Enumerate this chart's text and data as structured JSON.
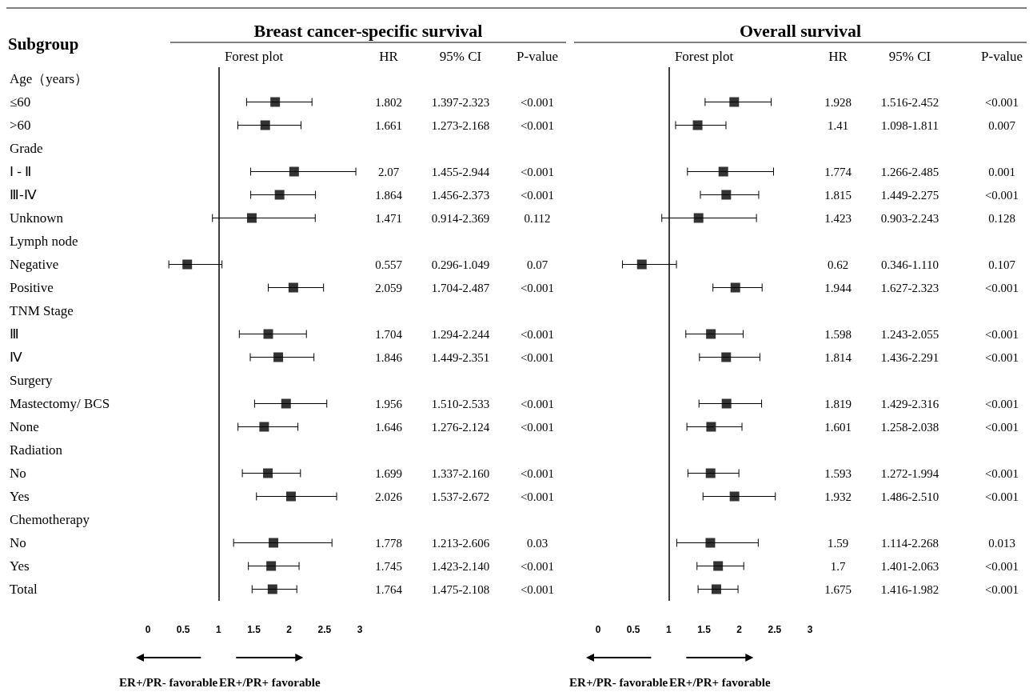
{
  "chart_data": [
    {
      "type": "scatter",
      "title": "Breast cancer-specific survival",
      "ylabel": "Subgroup",
      "orientation": "horizontal",
      "marker": "square",
      "color": "#000000",
      "data_labels": true,
      "categories": [
        "Age（years）",
        "≤60",
        ">60",
        "Grade",
        "Ⅰ - Ⅱ",
        "Ⅲ-Ⅳ",
        "Unknown",
        "Lymph node",
        "Negative",
        "Positive",
        "TNM Stage",
        "Ⅲ",
        "Ⅳ",
        "Surgery",
        "Mastectomy/ BCS",
        "None",
        "Radiation",
        "No",
        "Yes",
        "Chemotherapy",
        "No",
        "Yes",
        "Total"
      ],
      "values": [
        null,
        1.802,
        1.661,
        null,
        2.07,
        1.864,
        1.471,
        null,
        0.557,
        2.059,
        null,
        1.704,
        1.846,
        null,
        1.956,
        1.646,
        null,
        1.699,
        2.026,
        null,
        1.778,
        1.745,
        1.764
      ],
      "errors": [
        null,
        [
          1.397,
          2.323
        ],
        [
          1.273,
          2.168
        ],
        null,
        [
          1.455,
          2.944
        ],
        [
          1.456,
          2.373
        ],
        [
          0.914,
          2.369
        ],
        null,
        [
          0.296,
          1.049
        ],
        [
          1.704,
          2.487
        ],
        null,
        [
          1.294,
          2.244
        ],
        [
          1.449,
          2.351
        ],
        null,
        [
          1.51,
          2.533
        ],
        [
          1.276,
          2.124
        ],
        null,
        [
          1.337,
          2.16
        ],
        [
          1.537,
          2.672
        ],
        null,
        [
          1.213,
          2.606
        ],
        [
          1.423,
          2.14
        ],
        [
          1.475,
          2.108
        ]
      ],
      "xlim": [
        0,
        3
      ],
      "xticks": [
        0,
        0.5,
        1,
        1.5,
        2,
        2.5,
        3
      ],
      "grid": false,
      "ref_lines": [
        {
          "axis": "x",
          "value": 1
        }
      ],
      "annotations": [
        "Forest plot",
        "HR",
        "95% CI",
        "P-value",
        "ER+/PR- favorable",
        "ER+/PR+ favorable",
        "1.397-2.323",
        "1.273-2.168",
        "1.455-2.944",
        "1.456-2.373",
        "0.914-2.369",
        "0.296-1.049",
        "1.704-2.487",
        "1.294-2.244",
        "1.449-2.351",
        "1.510-2.533",
        "1.276-2.124",
        "1.337-2.160",
        "1.537-2.672",
        "1.213-2.606",
        "1.423-2.140",
        "1.475-2.108",
        "<0.001",
        "<0.001",
        "<0.001",
        "<0.001",
        "0.112",
        "0.07",
        "<0.001",
        "<0.001",
        "<0.001",
        "<0.001",
        "<0.001",
        "<0.001",
        "<0.001",
        "0.03",
        "<0.001",
        "<0.001"
      ]
    },
    {
      "type": "scatter",
      "title": "Overall survival",
      "orientation": "horizontal",
      "marker": "square",
      "color": "#000000",
      "data_labels": true,
      "tick_labels": "x",
      "categories": [
        null,
        null,
        null,
        null,
        null,
        null,
        null,
        null,
        null,
        null,
        null,
        null,
        null,
        null,
        null,
        null,
        null,
        null,
        null,
        null,
        null,
        null,
        null
      ],
      "values": [
        null,
        1.928,
        1.41,
        null,
        1.774,
        1.815,
        1.423,
        null,
        0.62,
        1.944,
        null,
        1.598,
        1.814,
        null,
        1.819,
        1.601,
        null,
        1.593,
        1.932,
        null,
        1.59,
        1.7,
        1.675
      ],
      "errors": [
        null,
        [
          1.516,
          2.452
        ],
        [
          1.098,
          1.811
        ],
        null,
        [
          1.266,
          2.485
        ],
        [
          1.449,
          2.275
        ],
        [
          0.903,
          2.243
        ],
        null,
        [
          0.346,
          1.11
        ],
        [
          1.627,
          2.323
        ],
        null,
        [
          1.243,
          2.055
        ],
        [
          1.436,
          2.291
        ],
        null,
        [
          1.429,
          2.316
        ],
        [
          1.258,
          2.038
        ],
        null,
        [
          1.272,
          1.994
        ],
        [
          1.486,
          2.51
        ],
        null,
        [
          1.114,
          2.268
        ],
        [
          1.401,
          2.063
        ],
        [
          1.416,
          1.982
        ]
      ],
      "xlim": [
        0,
        3
      ],
      "xticks": [
        0,
        0.5,
        1,
        1.5,
        2,
        2.5,
        3
      ],
      "grid": false,
      "ref_lines": [
        {
          "axis": "x",
          "value": 1
        }
      ],
      "annotations": [
        "Forest plot",
        "HR",
        "95% CI",
        "P-value",
        "ER+/PR- favorable",
        "ER+/PR+ favorable",
        "1.516-2.452",
        "1.098-1.811",
        "1.266-2.485",
        "1.449-2.275",
        "0.903-2.243",
        "0.346-1.110",
        "1.627-2.323",
        "1.243-2.055",
        "1.436-2.291",
        "1.429-2.316",
        "1.258-2.038",
        "1.272-1.994",
        "1.486-2.510",
        "1.114-2.268",
        "1.401-2.063",
        "1.416-1.982",
        "<0.001",
        "0.007",
        "0.001",
        "<0.001",
        "0.128",
        "0.107",
        "<0.001",
        "<0.001",
        "<0.001",
        "<0.001",
        "<0.001",
        "<0.001",
        "<0.001",
        "0.013",
        "<0.001",
        "<0.001"
      ]
    }
  ]
}
